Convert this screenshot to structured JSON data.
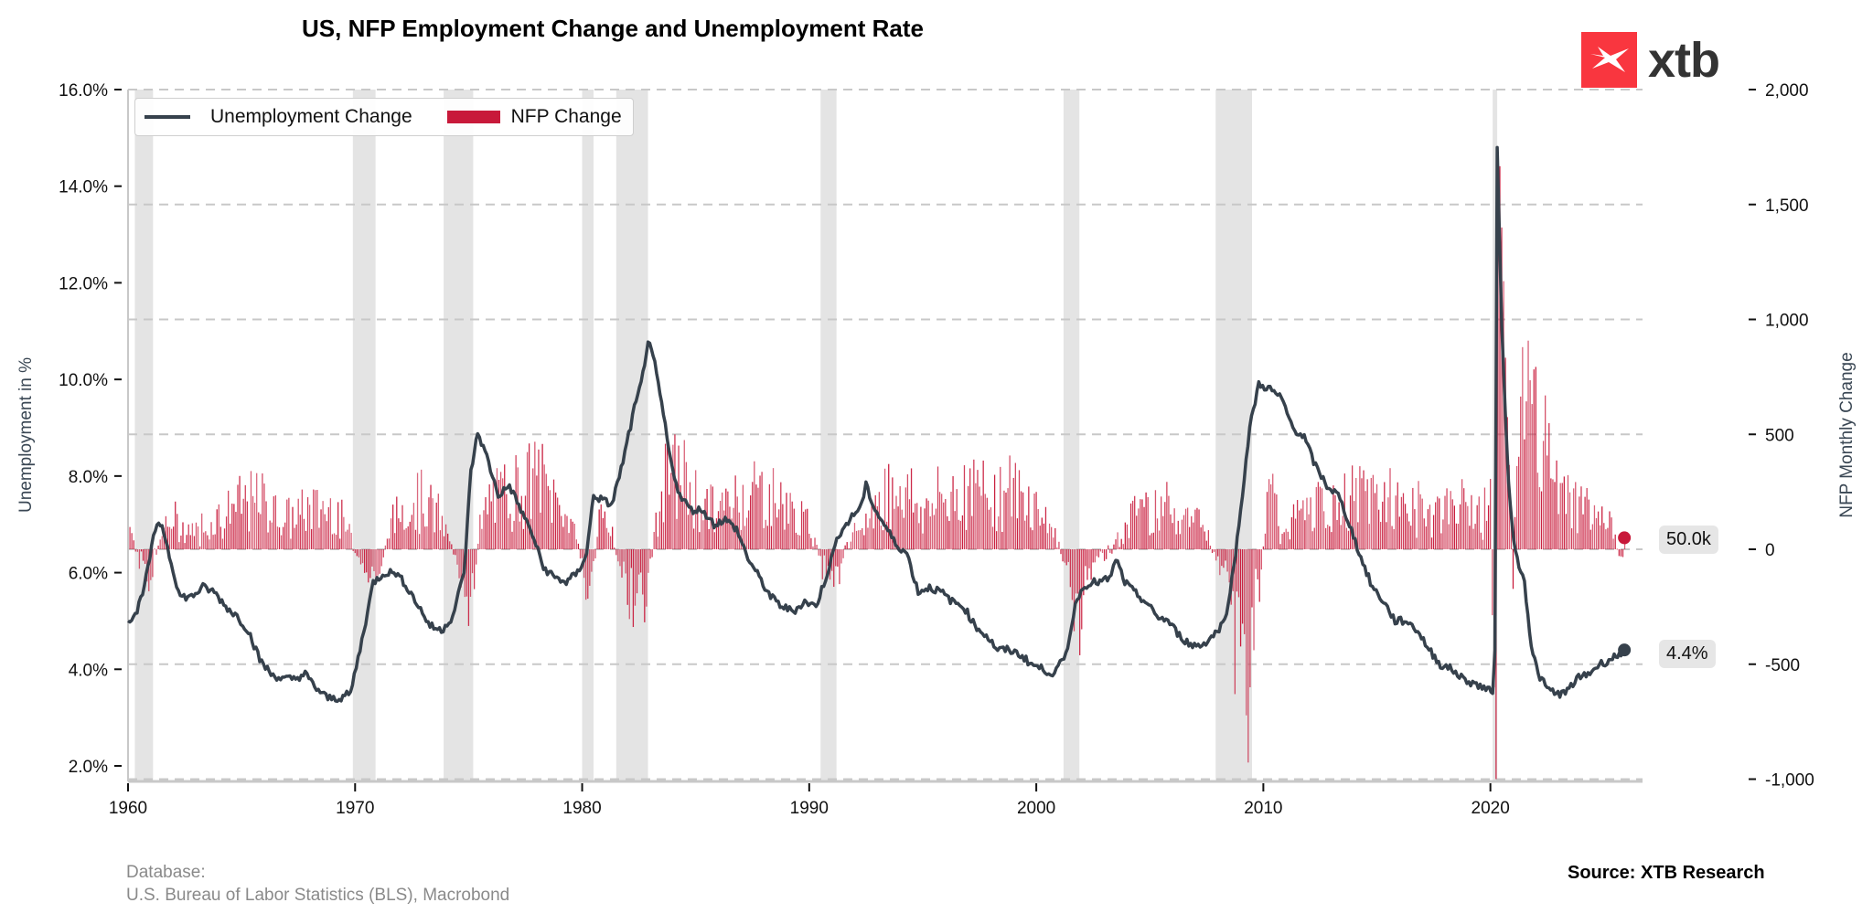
{
  "header": {
    "title": "US, NFP Employment Change and Unemployment Rate",
    "logo_text": "xtb"
  },
  "legend": {
    "line_label": "Unemployment Change",
    "bar_label": "NFP Change"
  },
  "badges": {
    "nfp_last": "50.0k",
    "unemployment_last": "4.4%"
  },
  "footer": {
    "database_label": "Database:",
    "database_sources": "U.S. Bureau of Labor Statistics (BLS), Macrobond",
    "source": "Source: XTB Research"
  },
  "colors": {
    "line": "#36414c",
    "bars": "#c8193a",
    "recession": "#e4e4e4",
    "grid": "#c8c8c8",
    "logo": "#f9363f"
  },
  "chart_data": {
    "type": "bar+line",
    "title": "US, NFP Employment Change and Unemployment Rate",
    "xlabel": "",
    "ylabel": "Unemployment in %",
    "y2label": "NFP Monthly Change",
    "xlim": [
      1960,
      2026
    ],
    "ylim": [
      1.7,
      16.5
    ],
    "y2lim": [
      -1000,
      2000
    ],
    "x_ticks": [
      "1960",
      "1970",
      "1980",
      "1990",
      "2000",
      "2010",
      "2020"
    ],
    "y_ticks": [
      "2.0%",
      "4.0%",
      "6.0%",
      "8.0%",
      "10.0%",
      "12.0%",
      "14.0%",
      "16.0%"
    ],
    "y2_ticks": [
      "-1,000",
      "-500",
      "0",
      "500",
      "1,000",
      "1,500",
      "2,000"
    ],
    "y_tick_values": [
      2,
      4,
      6,
      8,
      10,
      12,
      14,
      16
    ],
    "y2_tick_values": [
      -1000,
      -500,
      0,
      500,
      1000,
      1500,
      2000
    ],
    "grid": "horizontal dashed at right-axis ticks",
    "legend_position": "top-left",
    "recessions": [
      [
        1960.3,
        1961.1
      ],
      [
        1969.9,
        1970.9
      ],
      [
        1973.9,
        1975.2
      ],
      [
        1980.0,
        1980.5
      ],
      [
        1981.5,
        1982.9
      ],
      [
        1990.5,
        1991.2
      ],
      [
        2001.2,
        2001.9
      ],
      [
        2007.9,
        2009.5
      ],
      [
        2020.1,
        2020.3
      ]
    ],
    "series": [
      {
        "name": "Unemployment Change",
        "axis": "left",
        "type": "line",
        "points": [
          [
            1960.0,
            5.0
          ],
          [
            1960.4,
            5.2
          ],
          [
            1960.8,
            5.9
          ],
          [
            1961.2,
            6.9
          ],
          [
            1961.5,
            7.0
          ],
          [
            1961.9,
            6.2
          ],
          [
            1962.3,
            5.5
          ],
          [
            1962.8,
            5.5
          ],
          [
            1963.3,
            5.7
          ],
          [
            1963.8,
            5.6
          ],
          [
            1964.3,
            5.3
          ],
          [
            1964.8,
            5.1
          ],
          [
            1965.3,
            4.8
          ],
          [
            1965.8,
            4.2
          ],
          [
            1966.3,
            3.9
          ],
          [
            1966.8,
            3.8
          ],
          [
            1967.3,
            3.8
          ],
          [
            1967.8,
            3.9
          ],
          [
            1968.3,
            3.6
          ],
          [
            1968.8,
            3.4
          ],
          [
            1969.3,
            3.4
          ],
          [
            1969.8,
            3.5
          ],
          [
            1970.3,
            4.6
          ],
          [
            1970.8,
            5.8
          ],
          [
            1971.3,
            6.0
          ],
          [
            1971.8,
            6.0
          ],
          [
            1972.3,
            5.7
          ],
          [
            1972.8,
            5.3
          ],
          [
            1973.3,
            4.9
          ],
          [
            1973.8,
            4.8
          ],
          [
            1974.3,
            5.1
          ],
          [
            1974.8,
            6.0
          ],
          [
            1975.1,
            8.1
          ],
          [
            1975.4,
            8.9
          ],
          [
            1975.8,
            8.4
          ],
          [
            1976.3,
            7.6
          ],
          [
            1976.8,
            7.8
          ],
          [
            1977.3,
            7.3
          ],
          [
            1977.8,
            6.8
          ],
          [
            1978.3,
            6.1
          ],
          [
            1978.8,
            5.9
          ],
          [
            1979.3,
            5.8
          ],
          [
            1979.8,
            6.0
          ],
          [
            1980.2,
            6.4
          ],
          [
            1980.5,
            7.6
          ],
          [
            1980.9,
            7.5
          ],
          [
            1981.3,
            7.4
          ],
          [
            1981.8,
            8.3
          ],
          [
            1982.3,
            9.4
          ],
          [
            1982.6,
            9.9
          ],
          [
            1982.9,
            10.8
          ],
          [
            1983.2,
            10.3
          ],
          [
            1983.5,
            9.5
          ],
          [
            1983.9,
            8.3
          ],
          [
            1984.3,
            7.6
          ],
          [
            1984.8,
            7.3
          ],
          [
            1985.3,
            7.3
          ],
          [
            1985.8,
            7.0
          ],
          [
            1986.3,
            7.1
          ],
          [
            1986.8,
            6.9
          ],
          [
            1987.3,
            6.3
          ],
          [
            1987.8,
            5.9
          ],
          [
            1988.3,
            5.5
          ],
          [
            1988.8,
            5.3
          ],
          [
            1989.3,
            5.2
          ],
          [
            1989.8,
            5.4
          ],
          [
            1990.3,
            5.3
          ],
          [
            1990.8,
            6.0
          ],
          [
            1991.3,
            6.8
          ],
          [
            1991.8,
            7.1
          ],
          [
            1992.3,
            7.4
          ],
          [
            1992.5,
            7.8
          ],
          [
            1992.9,
            7.3
          ],
          [
            1993.3,
            7.0
          ],
          [
            1993.8,
            6.6
          ],
          [
            1994.3,
            6.4
          ],
          [
            1994.8,
            5.6
          ],
          [
            1995.3,
            5.7
          ],
          [
            1995.8,
            5.6
          ],
          [
            1996.3,
            5.4
          ],
          [
            1996.8,
            5.3
          ],
          [
            1997.3,
            4.9
          ],
          [
            1997.8,
            4.7
          ],
          [
            1998.3,
            4.4
          ],
          [
            1998.8,
            4.4
          ],
          [
            1999.3,
            4.3
          ],
          [
            1999.8,
            4.1
          ],
          [
            2000.3,
            4.0
          ],
          [
            2000.8,
            3.9
          ],
          [
            2001.3,
            4.3
          ],
          [
            2001.8,
            5.5
          ],
          [
            2002.3,
            5.8
          ],
          [
            2002.8,
            5.8
          ],
          [
            2003.3,
            5.9
          ],
          [
            2003.5,
            6.3
          ],
          [
            2003.9,
            5.8
          ],
          [
            2004.3,
            5.6
          ],
          [
            2004.8,
            5.4
          ],
          [
            2005.3,
            5.1
          ],
          [
            2005.8,
            5.0
          ],
          [
            2006.3,
            4.7
          ],
          [
            2006.8,
            4.5
          ],
          [
            2007.3,
            4.5
          ],
          [
            2007.8,
            4.7
          ],
          [
            2008.3,
            5.0
          ],
          [
            2008.7,
            6.1
          ],
          [
            2009.0,
            7.3
          ],
          [
            2009.4,
            9.0
          ],
          [
            2009.8,
            9.9
          ],
          [
            2010.3,
            9.8
          ],
          [
            2010.8,
            9.6
          ],
          [
            2011.3,
            9.0
          ],
          [
            2011.8,
            8.8
          ],
          [
            2012.3,
            8.2
          ],
          [
            2012.8,
            7.8
          ],
          [
            2013.3,
            7.6
          ],
          [
            2013.8,
            7.0
          ],
          [
            2014.3,
            6.3
          ],
          [
            2014.8,
            5.7
          ],
          [
            2015.3,
            5.4
          ],
          [
            2015.8,
            5.0
          ],
          [
            2016.3,
            5.0
          ],
          [
            2016.8,
            4.8
          ],
          [
            2017.3,
            4.4
          ],
          [
            2017.8,
            4.1
          ],
          [
            2018.3,
            4.0
          ],
          [
            2018.8,
            3.8
          ],
          [
            2019.3,
            3.7
          ],
          [
            2019.8,
            3.6
          ],
          [
            2020.1,
            3.5
          ],
          [
            2020.2,
            4.4
          ],
          [
            2020.3,
            14.8
          ],
          [
            2020.5,
            11.1
          ],
          [
            2020.8,
            7.8
          ],
          [
            2021.1,
            6.4
          ],
          [
            2021.5,
            5.8
          ],
          [
            2021.8,
            4.5
          ],
          [
            2022.1,
            3.9
          ],
          [
            2022.5,
            3.6
          ],
          [
            2022.9,
            3.5
          ],
          [
            2023.3,
            3.5
          ],
          [
            2023.8,
            3.8
          ],
          [
            2024.3,
            3.9
          ],
          [
            2024.8,
            4.1
          ],
          [
            2025.3,
            4.2
          ],
          [
            2025.6,
            4.3
          ],
          [
            2025.9,
            4.4
          ]
        ]
      },
      {
        "name": "NFP Change",
        "axis": "right",
        "type": "bar",
        "unit": "thousands",
        "keyframes": [
          [
            1960.0,
            200
          ],
          [
            1960.5,
            -80
          ],
          [
            1961.0,
            -120
          ],
          [
            1961.5,
            90
          ],
          [
            1962.0,
            120
          ],
          [
            1963.0,
            80
          ],
          [
            1964.0,
            150
          ],
          [
            1965.0,
            200
          ],
          [
            1966.0,
            220
          ],
          [
            1967.0,
            130
          ],
          [
            1968.0,
            180
          ],
          [
            1969.0,
            190
          ],
          [
            1969.8,
            60
          ],
          [
            1970.3,
            -100
          ],
          [
            1970.9,
            -130
          ],
          [
            1971.5,
            80
          ],
          [
            1972.0,
            180
          ],
          [
            1973.0,
            240
          ],
          [
            1974.0,
            90
          ],
          [
            1974.5,
            -60
          ],
          [
            1975.0,
            -400
          ],
          [
            1975.5,
            100
          ],
          [
            1976.0,
            220
          ],
          [
            1977.0,
            270
          ],
          [
            1978.0,
            330
          ],
          [
            1979.0,
            200
          ],
          [
            1979.8,
            60
          ],
          [
            1980.3,
            -250
          ],
          [
            1980.8,
            150
          ],
          [
            1981.3,
            90
          ],
          [
            1981.8,
            -150
          ],
          [
            1982.3,
            -250
          ],
          [
            1982.8,
            -220
          ],
          [
            1983.3,
            150
          ],
          [
            1983.8,
            350
          ],
          [
            1984.3,
            330
          ],
          [
            1985.0,
            220
          ],
          [
            1986.0,
            160
          ],
          [
            1987.0,
            250
          ],
          [
            1988.0,
            260
          ],
          [
            1989.0,
            180
          ],
          [
            1990.0,
            100
          ],
          [
            1990.6,
            -80
          ],
          [
            1991.1,
            -150
          ],
          [
            1991.7,
            20
          ],
          [
            1992.3,
            100
          ],
          [
            1993.0,
            200
          ],
          [
            1994.0,
            300
          ],
          [
            1995.0,
            170
          ],
          [
            1996.0,
            230
          ],
          [
            1997.0,
            280
          ],
          [
            1998.0,
            250
          ],
          [
            1999.0,
            250
          ],
          [
            2000.0,
            200
          ],
          [
            2000.9,
            50
          ],
          [
            2001.5,
            -150
          ],
          [
            2001.9,
            -300
          ],
          [
            2002.5,
            -50
          ],
          [
            2003.0,
            -40
          ],
          [
            2003.8,
            80
          ],
          [
            2004.5,
            200
          ],
          [
            2005.5,
            200
          ],
          [
            2006.5,
            170
          ],
          [
            2007.5,
            90
          ],
          [
            2008.0,
            -50
          ],
          [
            2008.5,
            -200
          ],
          [
            2008.9,
            -550
          ],
          [
            2009.2,
            -700
          ],
          [
            2009.6,
            -300
          ],
          [
            2009.9,
            -100
          ],
          [
            2010.3,
            300
          ],
          [
            2010.8,
            60
          ],
          [
            2011.5,
            150
          ],
          [
            2012.5,
            180
          ],
          [
            2013.5,
            200
          ],
          [
            2014.5,
            250
          ],
          [
            2015.5,
            220
          ],
          [
            2016.5,
            180
          ],
          [
            2017.5,
            180
          ],
          [
            2018.5,
            200
          ],
          [
            2019.5,
            170
          ],
          [
            2020.0,
            200
          ],
          [
            2020.25,
            -1000
          ],
          [
            2020.35,
            2000
          ],
          [
            2020.45,
            1500
          ],
          [
            2020.55,
            1300
          ],
          [
            2020.7,
            700
          ],
          [
            2020.9,
            200
          ],
          [
            2021.0,
            -150
          ],
          [
            2021.2,
            500
          ],
          [
            2021.5,
            700
          ],
          [
            2021.8,
            550
          ],
          [
            2022.1,
            500
          ],
          [
            2022.5,
            400
          ],
          [
            2022.9,
            270
          ],
          [
            2023.3,
            250
          ],
          [
            2023.8,
            200
          ],
          [
            2024.3,
            180
          ],
          [
            2024.7,
            120
          ],
          [
            2025.0,
            150
          ],
          [
            2025.4,
            80
          ],
          [
            2025.6,
            20
          ],
          [
            2025.8,
            -40
          ],
          [
            2025.9,
            50
          ]
        ]
      }
    ],
    "annotations": [
      "50.0k",
      "4.4%"
    ]
  }
}
